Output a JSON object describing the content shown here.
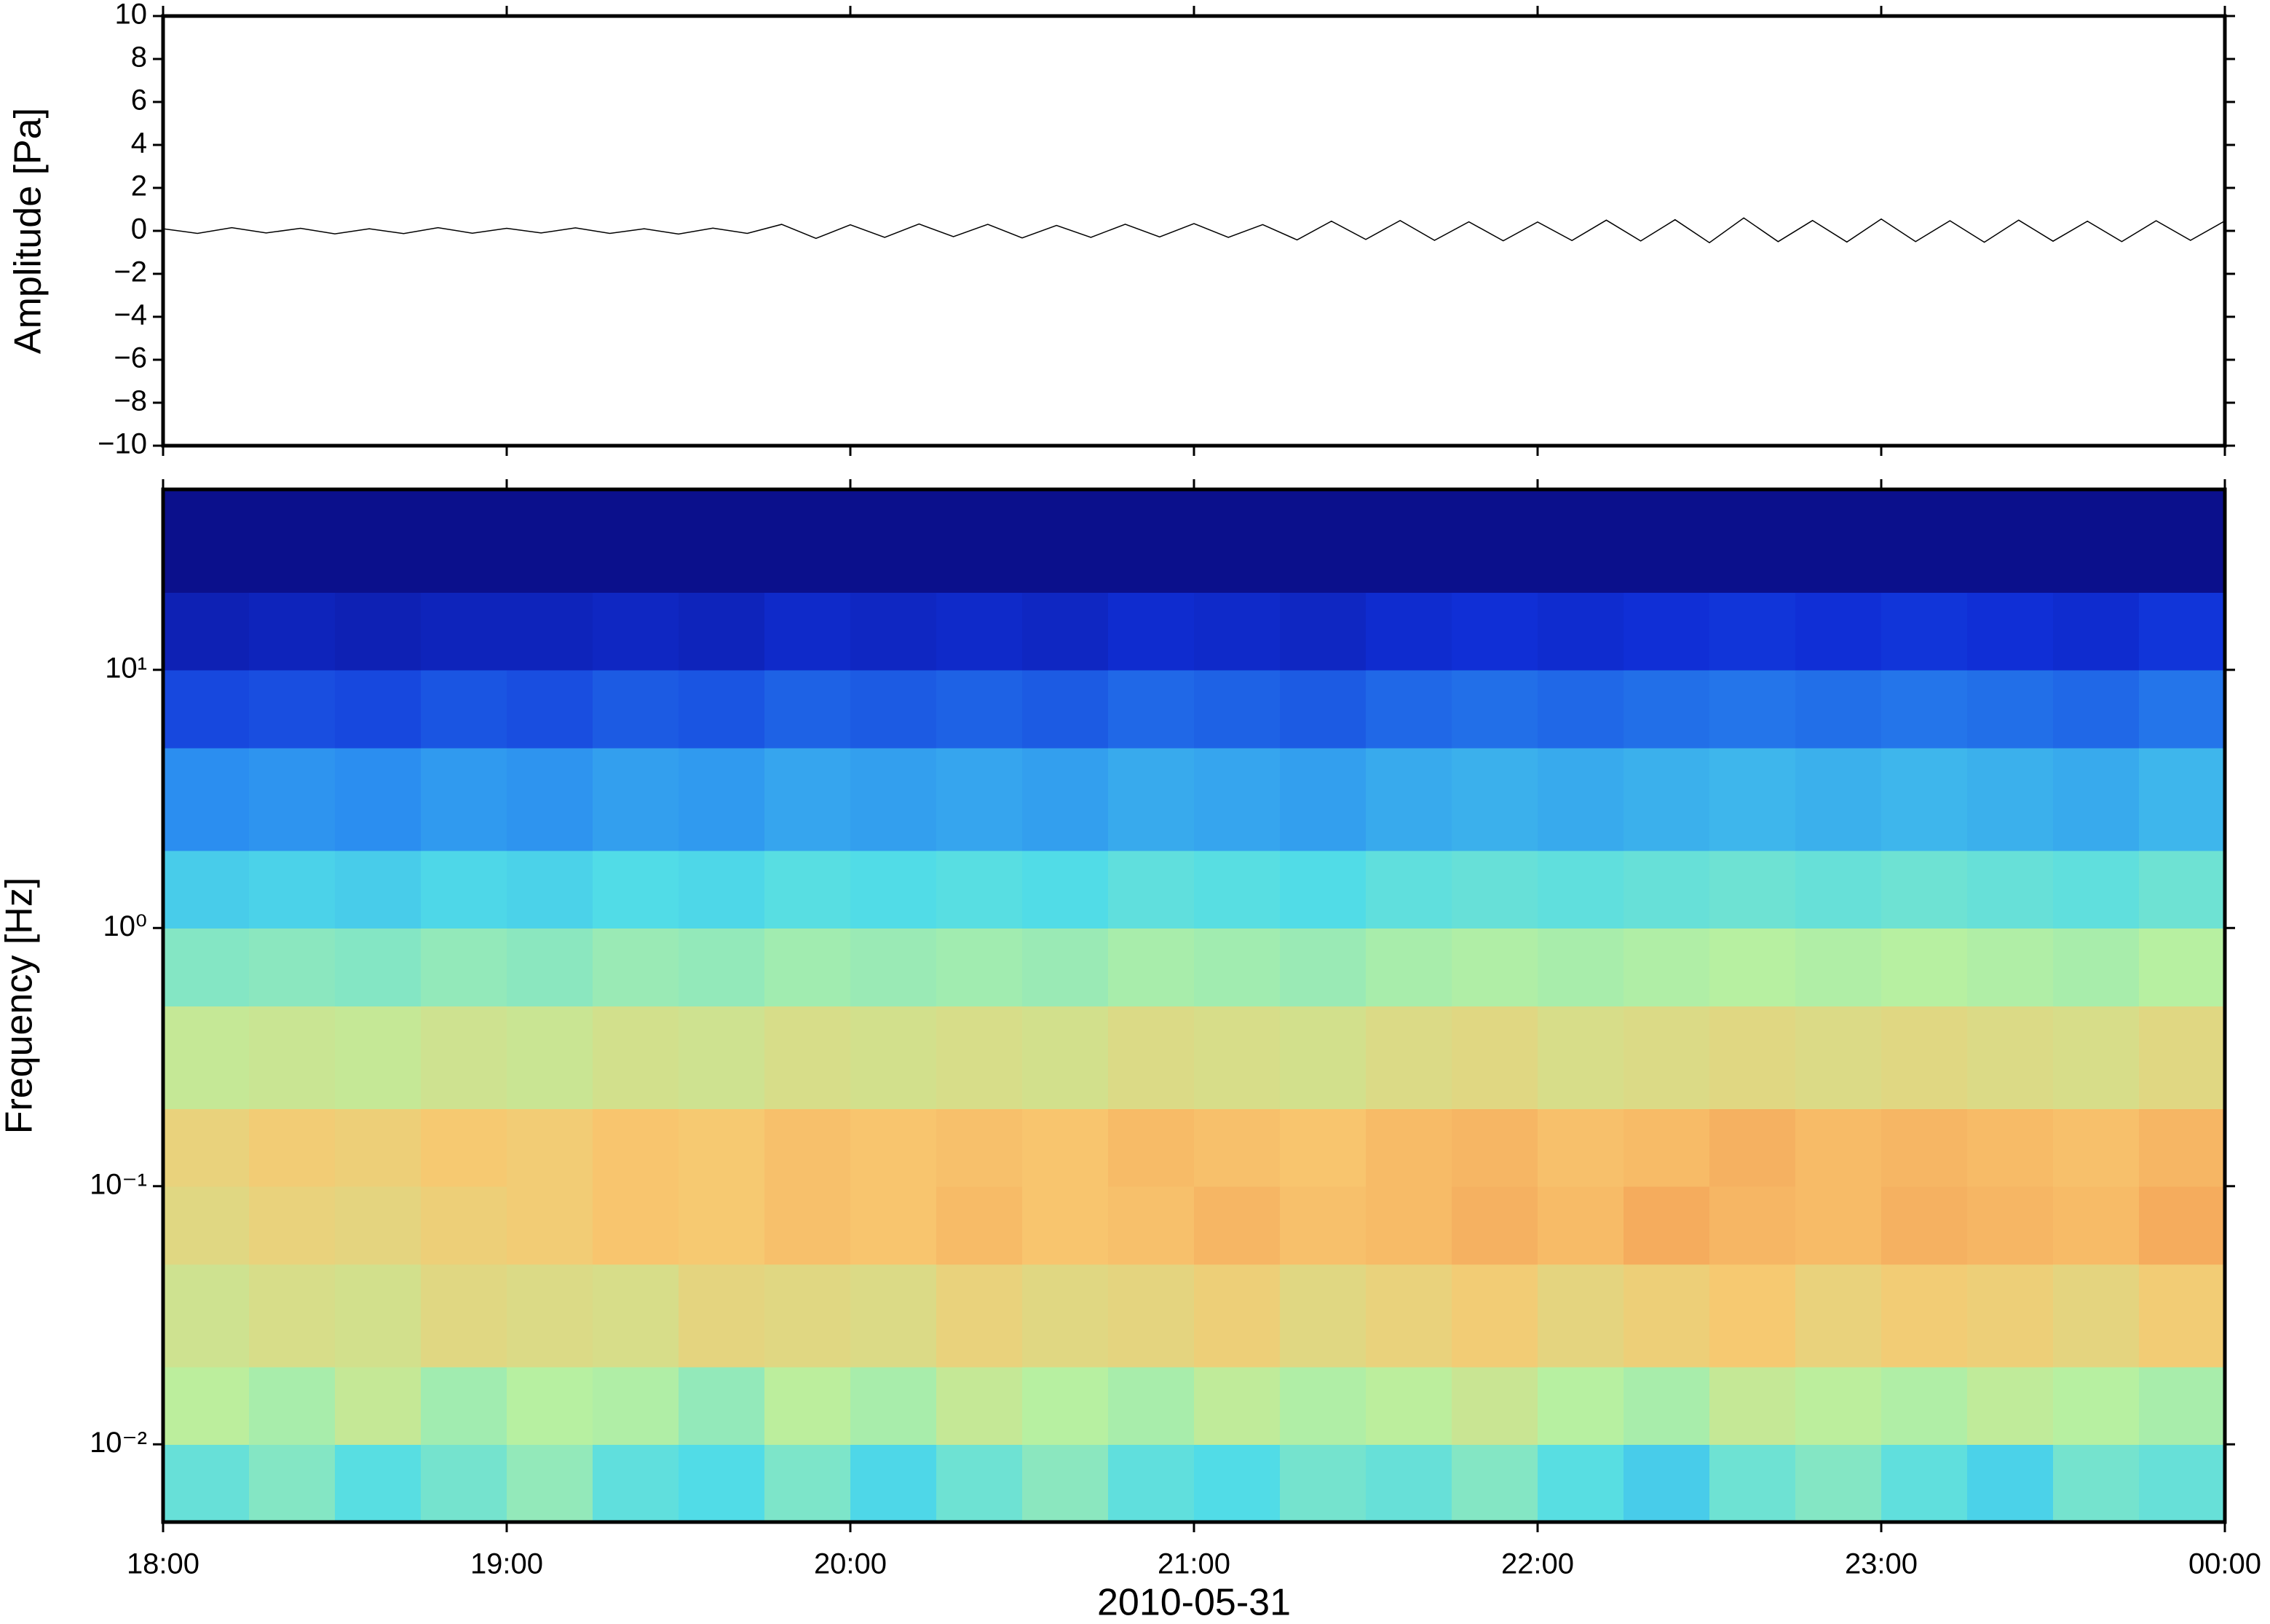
{
  "chart_data": [
    {
      "type": "line",
      "ylabel": "Amplitude [Pa]",
      "xlim": [
        18,
        24
      ],
      "ylim": [
        -10,
        10
      ],
      "yticks": [
        {
          "value": -10,
          "label": "−10"
        },
        {
          "value": -8,
          "label": "−8"
        },
        {
          "value": -6,
          "label": "−6"
        },
        {
          "value": -4,
          "label": "−4"
        },
        {
          "value": -2,
          "label": "−2"
        },
        0,
        2,
        4,
        6,
        8,
        10
      ],
      "color": "#000000",
      "x": [
        18,
        18.1,
        18.2,
        18.3,
        18.4,
        18.5,
        18.6,
        18.7,
        18.8,
        18.9,
        19,
        19.1,
        19.2,
        19.3,
        19.4,
        19.5,
        19.6,
        19.7,
        19.8,
        19.9,
        20,
        20.1,
        20.2,
        20.3,
        20.4,
        20.5,
        20.6,
        20.7,
        20.8,
        20.9,
        21,
        21.1,
        21.2,
        21.3,
        21.4,
        21.5,
        21.6,
        21.7,
        21.8,
        21.9,
        22,
        22.1,
        22.2,
        22.3,
        22.4,
        22.5,
        22.6,
        22.7,
        22.8,
        22.9,
        23,
        23.1,
        23.2,
        23.3,
        23.4,
        23.5,
        23.6,
        23.7,
        23.8,
        23.9,
        24
      ],
      "values": [
        0.1,
        -0.12,
        0.15,
        -0.1,
        0.12,
        -0.14,
        0.1,
        -0.13,
        0.15,
        -0.11,
        0.12,
        -0.1,
        0.14,
        -0.12,
        0.1,
        -0.15,
        0.13,
        -0.12,
        0.3,
        -0.35,
        0.28,
        -0.3,
        0.32,
        -0.27,
        0.3,
        -0.33,
        0.25,
        -0.3,
        0.31,
        -0.28,
        0.34,
        -0.3,
        0.29,
        -0.42,
        0.45,
        -0.4,
        0.48,
        -0.44,
        0.42,
        -0.46,
        0.41,
        -0.45,
        0.5,
        -0.47,
        0.52,
        -0.55,
        0.6,
        -0.5,
        0.48,
        -0.52,
        0.55,
        -0.5,
        0.47,
        -0.53,
        0.5,
        -0.48,
        0.45,
        -0.5,
        0.47,
        -0.44,
        0.46
      ]
    },
    {
      "type": "heatmap",
      "ylabel": "Frequency [Hz]",
      "xlabel": "2010-05-31",
      "xlim": [
        18,
        24
      ],
      "xticks": [
        {
          "value": 18,
          "label": "18:00"
        },
        {
          "value": 19,
          "label": "19:00"
        },
        {
          "value": 20,
          "label": "20:00"
        },
        {
          "value": 21,
          "label": "21:00"
        },
        {
          "value": 22,
          "label": "22:00"
        },
        {
          "value": 23,
          "label": "23:00"
        },
        {
          "value": 24,
          "label": "00:00"
        }
      ],
      "ylim": [
        0.005,
        50
      ],
      "log_y": true,
      "yticks": [
        {
          "value": 0.01,
          "label": "10⁻²"
        },
        {
          "value": 0.1,
          "label": "10⁻¹"
        },
        {
          "value": 1,
          "label": "10⁰"
        },
        {
          "value": 10,
          "label": "10¹"
        }
      ],
      "colormap": [
        "#0a0878",
        "#1030d8",
        "#2a8cf0",
        "#50dce8",
        "#b8f0a0",
        "#f8c870",
        "#f08040",
        "#d03020"
      ],
      "zlim": [
        0,
        1
      ],
      "xbins": [
        18,
        18.25,
        18.5,
        18.75,
        19,
        19.25,
        19.5,
        19.75,
        20,
        20.25,
        20.5,
        20.75,
        21,
        21.25,
        21.5,
        21.75,
        22,
        22.25,
        22.5,
        22.75,
        23,
        23.25,
        23.5,
        23.75,
        24
      ],
      "ybins": [
        0.005,
        0.01,
        0.02,
        0.05,
        0.1,
        0.2,
        0.5,
        1,
        2,
        5,
        10,
        20,
        50
      ],
      "z": [
        [
          0.46,
          0.5,
          0.44,
          0.48,
          0.52,
          0.45,
          0.43,
          0.49,
          0.42,
          0.47,
          0.51,
          0.45,
          0.43,
          0.48,
          0.46,
          0.5,
          0.44,
          0.4,
          0.47,
          0.5,
          0.45,
          0.41,
          0.48,
          0.46
        ],
        [
          0.58,
          0.55,
          0.6,
          0.54,
          0.57,
          0.56,
          0.52,
          0.58,
          0.55,
          0.6,
          0.57,
          0.55,
          0.59,
          0.56,
          0.58,
          0.61,
          0.57,
          0.55,
          0.6,
          0.58,
          0.56,
          0.59,
          0.57,
          0.55
        ],
        [
          0.62,
          0.64,
          0.63,
          0.66,
          0.65,
          0.64,
          0.67,
          0.66,
          0.65,
          0.68,
          0.66,
          0.67,
          0.69,
          0.66,
          0.68,
          0.7,
          0.67,
          0.69,
          0.71,
          0.68,
          0.7,
          0.69,
          0.67,
          0.7
        ],
        [
          0.66,
          0.68,
          0.67,
          0.69,
          0.7,
          0.72,
          0.71,
          0.73,
          0.72,
          0.74,
          0.72,
          0.73,
          0.75,
          0.73,
          0.74,
          0.76,
          0.74,
          0.77,
          0.75,
          0.74,
          0.76,
          0.75,
          0.74,
          0.77
        ],
        [
          0.68,
          0.7,
          0.69,
          0.71,
          0.7,
          0.72,
          0.71,
          0.73,
          0.72,
          0.73,
          0.72,
          0.74,
          0.73,
          0.72,
          0.74,
          0.75,
          0.73,
          0.74,
          0.76,
          0.74,
          0.75,
          0.74,
          0.73,
          0.75
        ],
        [
          0.6,
          0.61,
          0.6,
          0.62,
          0.61,
          0.63,
          0.62,
          0.64,
          0.63,
          0.64,
          0.63,
          0.65,
          0.64,
          0.63,
          0.65,
          0.66,
          0.64,
          0.65,
          0.66,
          0.65,
          0.66,
          0.65,
          0.64,
          0.66
        ],
        [
          0.5,
          0.51,
          0.5,
          0.52,
          0.51,
          0.53,
          0.52,
          0.54,
          0.53,
          0.54,
          0.53,
          0.55,
          0.54,
          0.53,
          0.55,
          0.56,
          0.55,
          0.56,
          0.57,
          0.56,
          0.57,
          0.56,
          0.55,
          0.57
        ],
        [
          0.4,
          0.41,
          0.4,
          0.42,
          0.41,
          0.43,
          0.42,
          0.44,
          0.43,
          0.44,
          0.43,
          0.45,
          0.44,
          0.43,
          0.45,
          0.46,
          0.45,
          0.46,
          0.47,
          0.46,
          0.47,
          0.46,
          0.45,
          0.47
        ],
        [
          0.29,
          0.3,
          0.29,
          0.31,
          0.3,
          0.32,
          0.31,
          0.33,
          0.32,
          0.33,
          0.32,
          0.34,
          0.33,
          0.32,
          0.34,
          0.35,
          0.34,
          0.35,
          0.36,
          0.35,
          0.36,
          0.35,
          0.34,
          0.36
        ],
        [
          0.18,
          0.19,
          0.18,
          0.2,
          0.19,
          0.21,
          0.2,
          0.22,
          0.21,
          0.22,
          0.21,
          0.23,
          0.22,
          0.21,
          0.23,
          0.24,
          0.23,
          0.24,
          0.25,
          0.24,
          0.25,
          0.24,
          0.23,
          0.25
        ],
        [
          0.09,
          0.1,
          0.09,
          0.1,
          0.1,
          0.11,
          0.1,
          0.12,
          0.11,
          0.12,
          0.11,
          0.13,
          0.12,
          0.11,
          0.13,
          0.14,
          0.13,
          0.14,
          0.15,
          0.14,
          0.15,
          0.14,
          0.13,
          0.15
        ],
        [
          0.03,
          0.03,
          0.03,
          0.03,
          0.03,
          0.03,
          0.03,
          0.03,
          0.03,
          0.03,
          0.03,
          0.03,
          0.03,
          0.03,
          0.03,
          0.03,
          0.03,
          0.03,
          0.03,
          0.03,
          0.03,
          0.03,
          0.03,
          0.03
        ]
      ]
    }
  ]
}
